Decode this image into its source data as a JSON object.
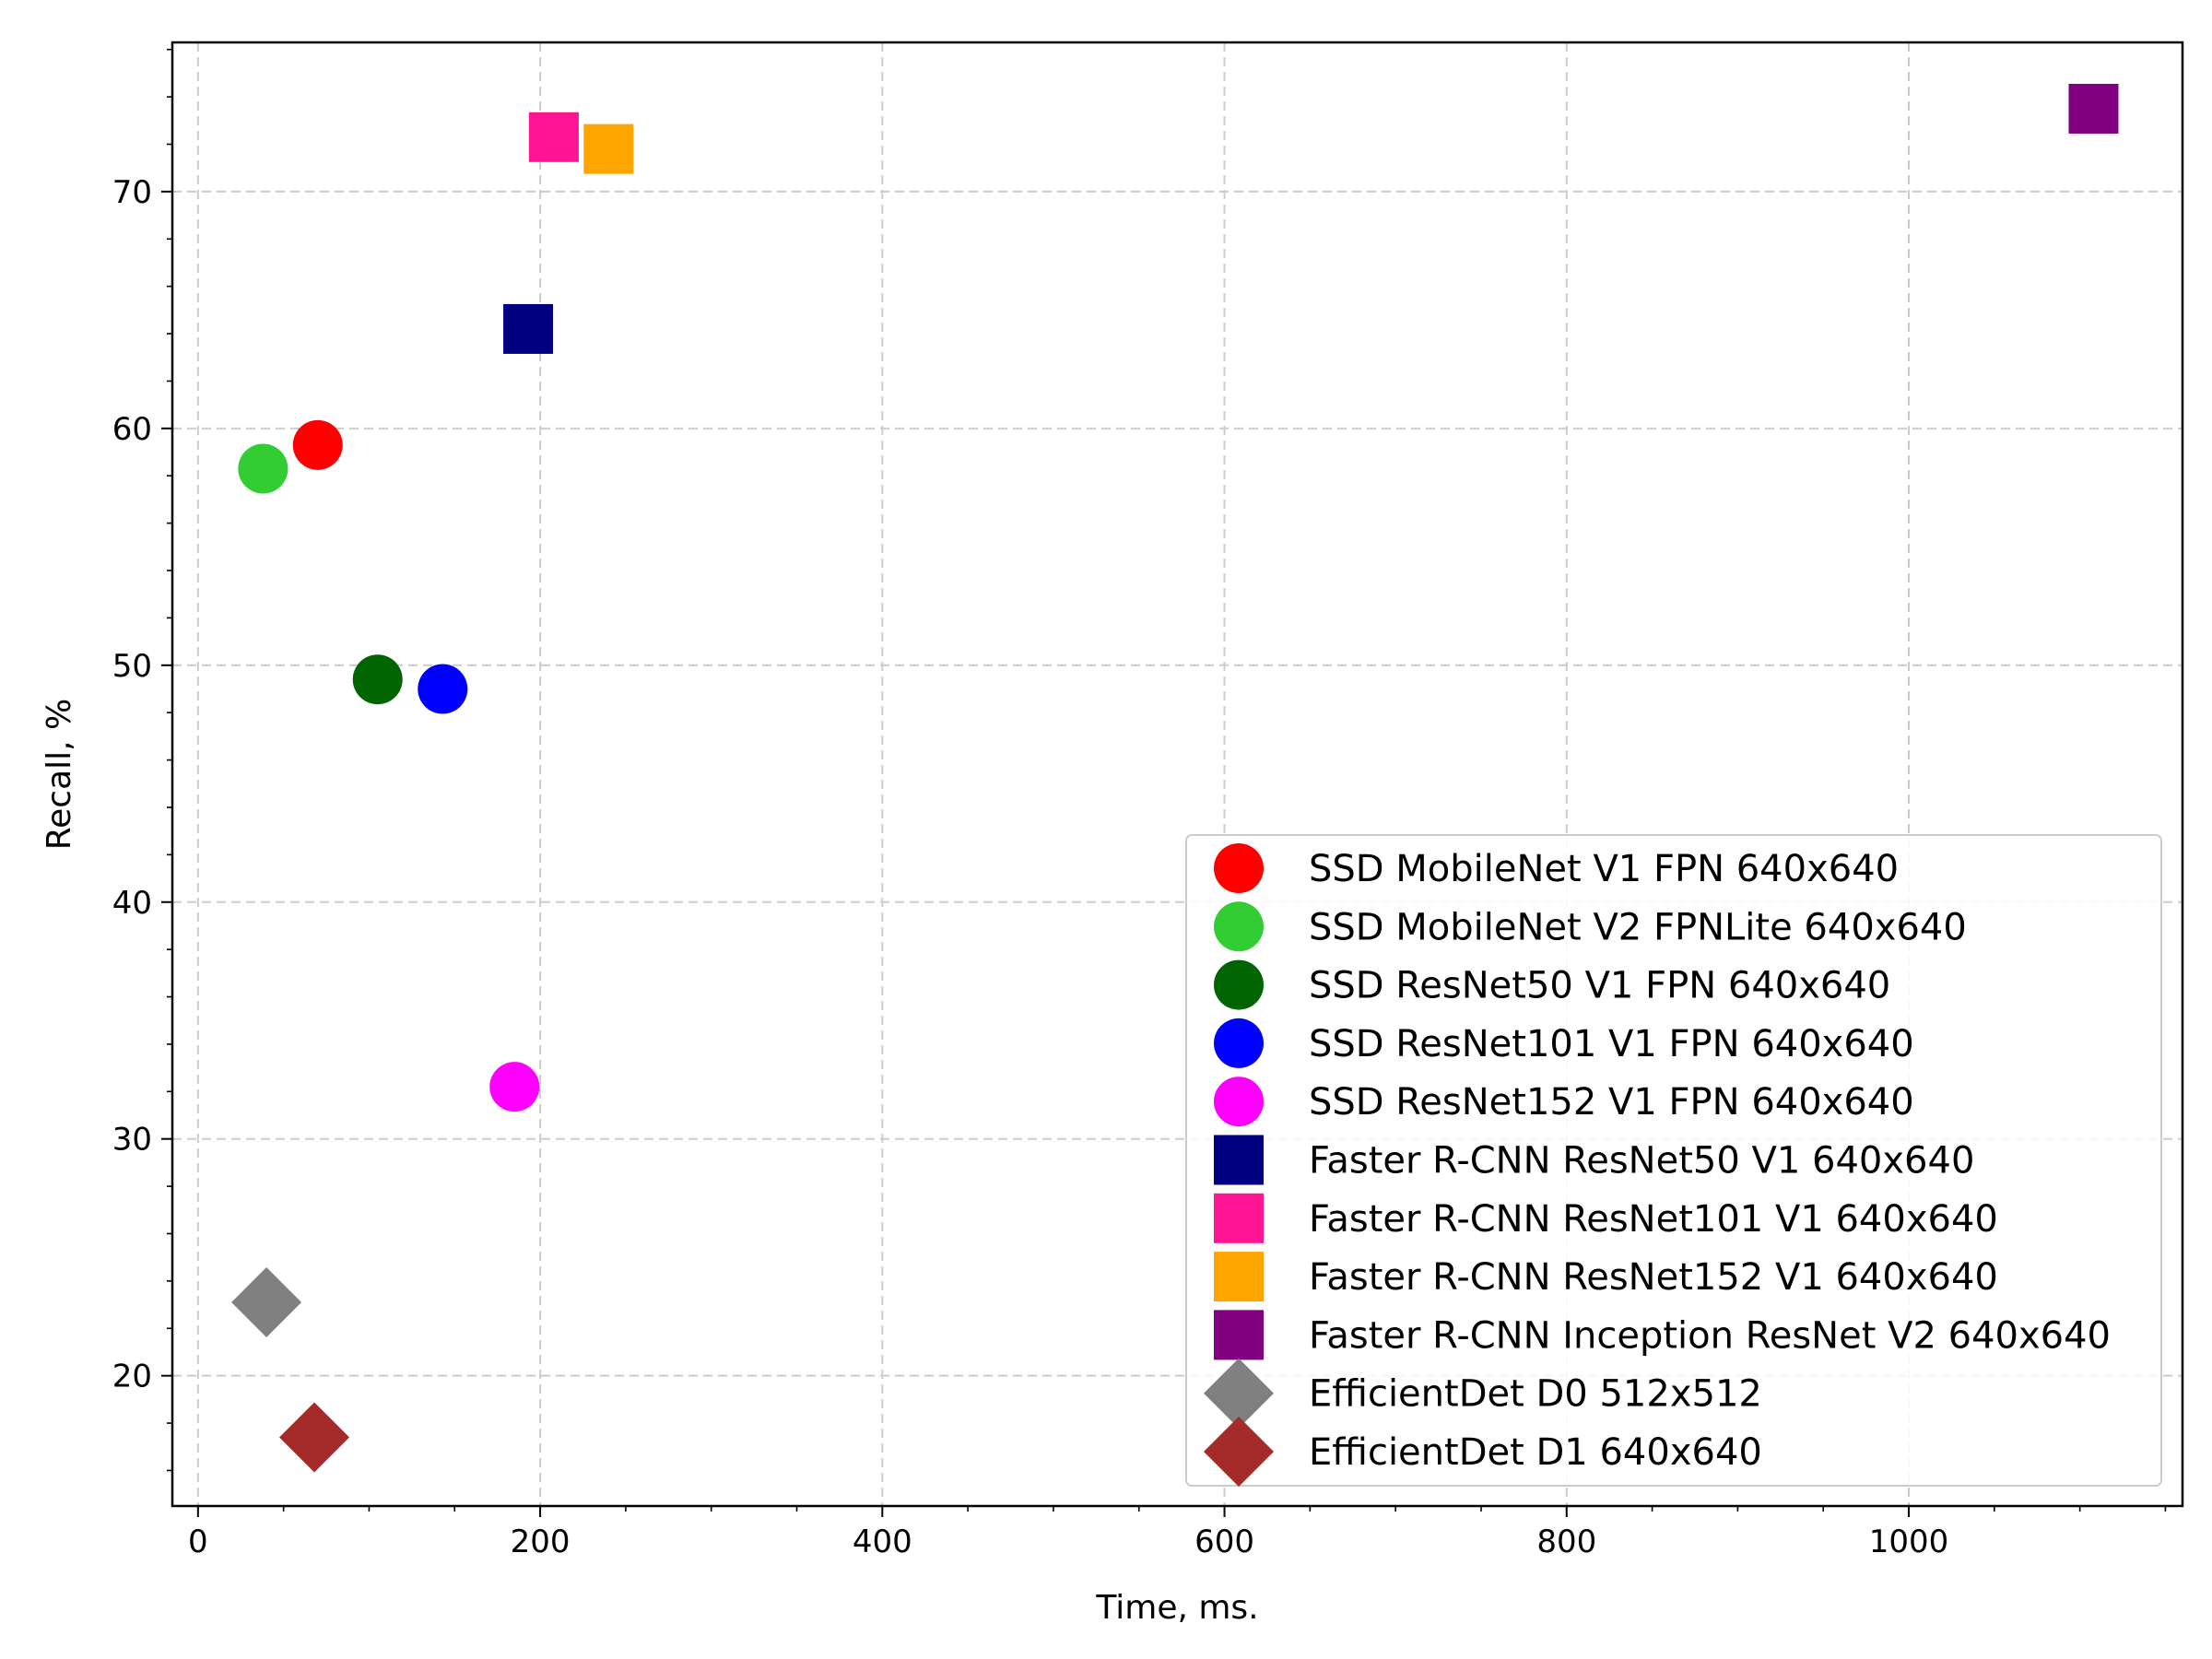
{
  "chart_data": {
    "type": "scatter",
    "title": "",
    "xlabel": "Time, ms.",
    "ylabel": "Recall, %",
    "xlim": [
      -15,
      1160
    ],
    "ylim": [
      14.5,
      76.3
    ],
    "xticks": [
      0,
      200,
      400,
      600,
      800,
      1000
    ],
    "yticks": [
      20,
      30,
      40,
      50,
      60,
      70
    ],
    "xtick_labels": [
      "0",
      "200",
      "400",
      "600",
      "800",
      "1000"
    ],
    "ytick_labels": [
      "20",
      "30",
      "40",
      "50",
      "60",
      "70"
    ],
    "grid": true,
    "legend_position": "lower-right",
    "series": [
      {
        "name": "SSD MobileNet V1 FPN 640x640",
        "marker": "circle",
        "color": "#ff0000",
        "x": [
          70
        ],
        "y": [
          59.3
        ]
      },
      {
        "name": "SSD MobileNet V2 FPNLite 640x640",
        "marker": "circle",
        "color": "#32cd32",
        "x": [
          38
        ],
        "y": [
          58.3
        ]
      },
      {
        "name": "SSD ResNet50 V1 FPN 640x640",
        "marker": "circle",
        "color": "#006400",
        "x": [
          105
        ],
        "y": [
          49.4
        ]
      },
      {
        "name": "SSD ResNet101 V1 FPN 640x640",
        "marker": "circle",
        "color": "#0000ff",
        "x": [
          143
        ],
        "y": [
          49.0
        ]
      },
      {
        "name": "SSD ResNet152 V1 FPN 640x640",
        "marker": "circle",
        "color": "#ff00ff",
        "x": [
          185
        ],
        "y": [
          32.2
        ]
      },
      {
        "name": "Faster R-CNN ResNet50 V1 640x640",
        "marker": "square",
        "color": "#000080",
        "x": [
          193
        ],
        "y": [
          64.2
        ]
      },
      {
        "name": "Faster R-CNN ResNet101 V1 640x640",
        "marker": "square",
        "color": "#ff1493",
        "x": [
          208
        ],
        "y": [
          72.3
        ]
      },
      {
        "name": "Faster R-CNN ResNet152 V1 640x640",
        "marker": "square",
        "color": "#ffa500",
        "x": [
          240
        ],
        "y": [
          71.8
        ]
      },
      {
        "name": "Faster R-CNN Inception ResNet V2 640x640",
        "marker": "square",
        "color": "#800080",
        "x": [
          1108
        ],
        "y": [
          73.5
        ]
      },
      {
        "name": "EfficientDet D0 512x512",
        "marker": "diamond",
        "color": "#808080",
        "x": [
          40
        ],
        "y": [
          23.1
        ]
      },
      {
        "name": "EfficientDet D1 640x640",
        "marker": "diamond",
        "color": "#a52a2a",
        "x": [
          68
        ],
        "y": [
          17.4
        ]
      }
    ]
  }
}
